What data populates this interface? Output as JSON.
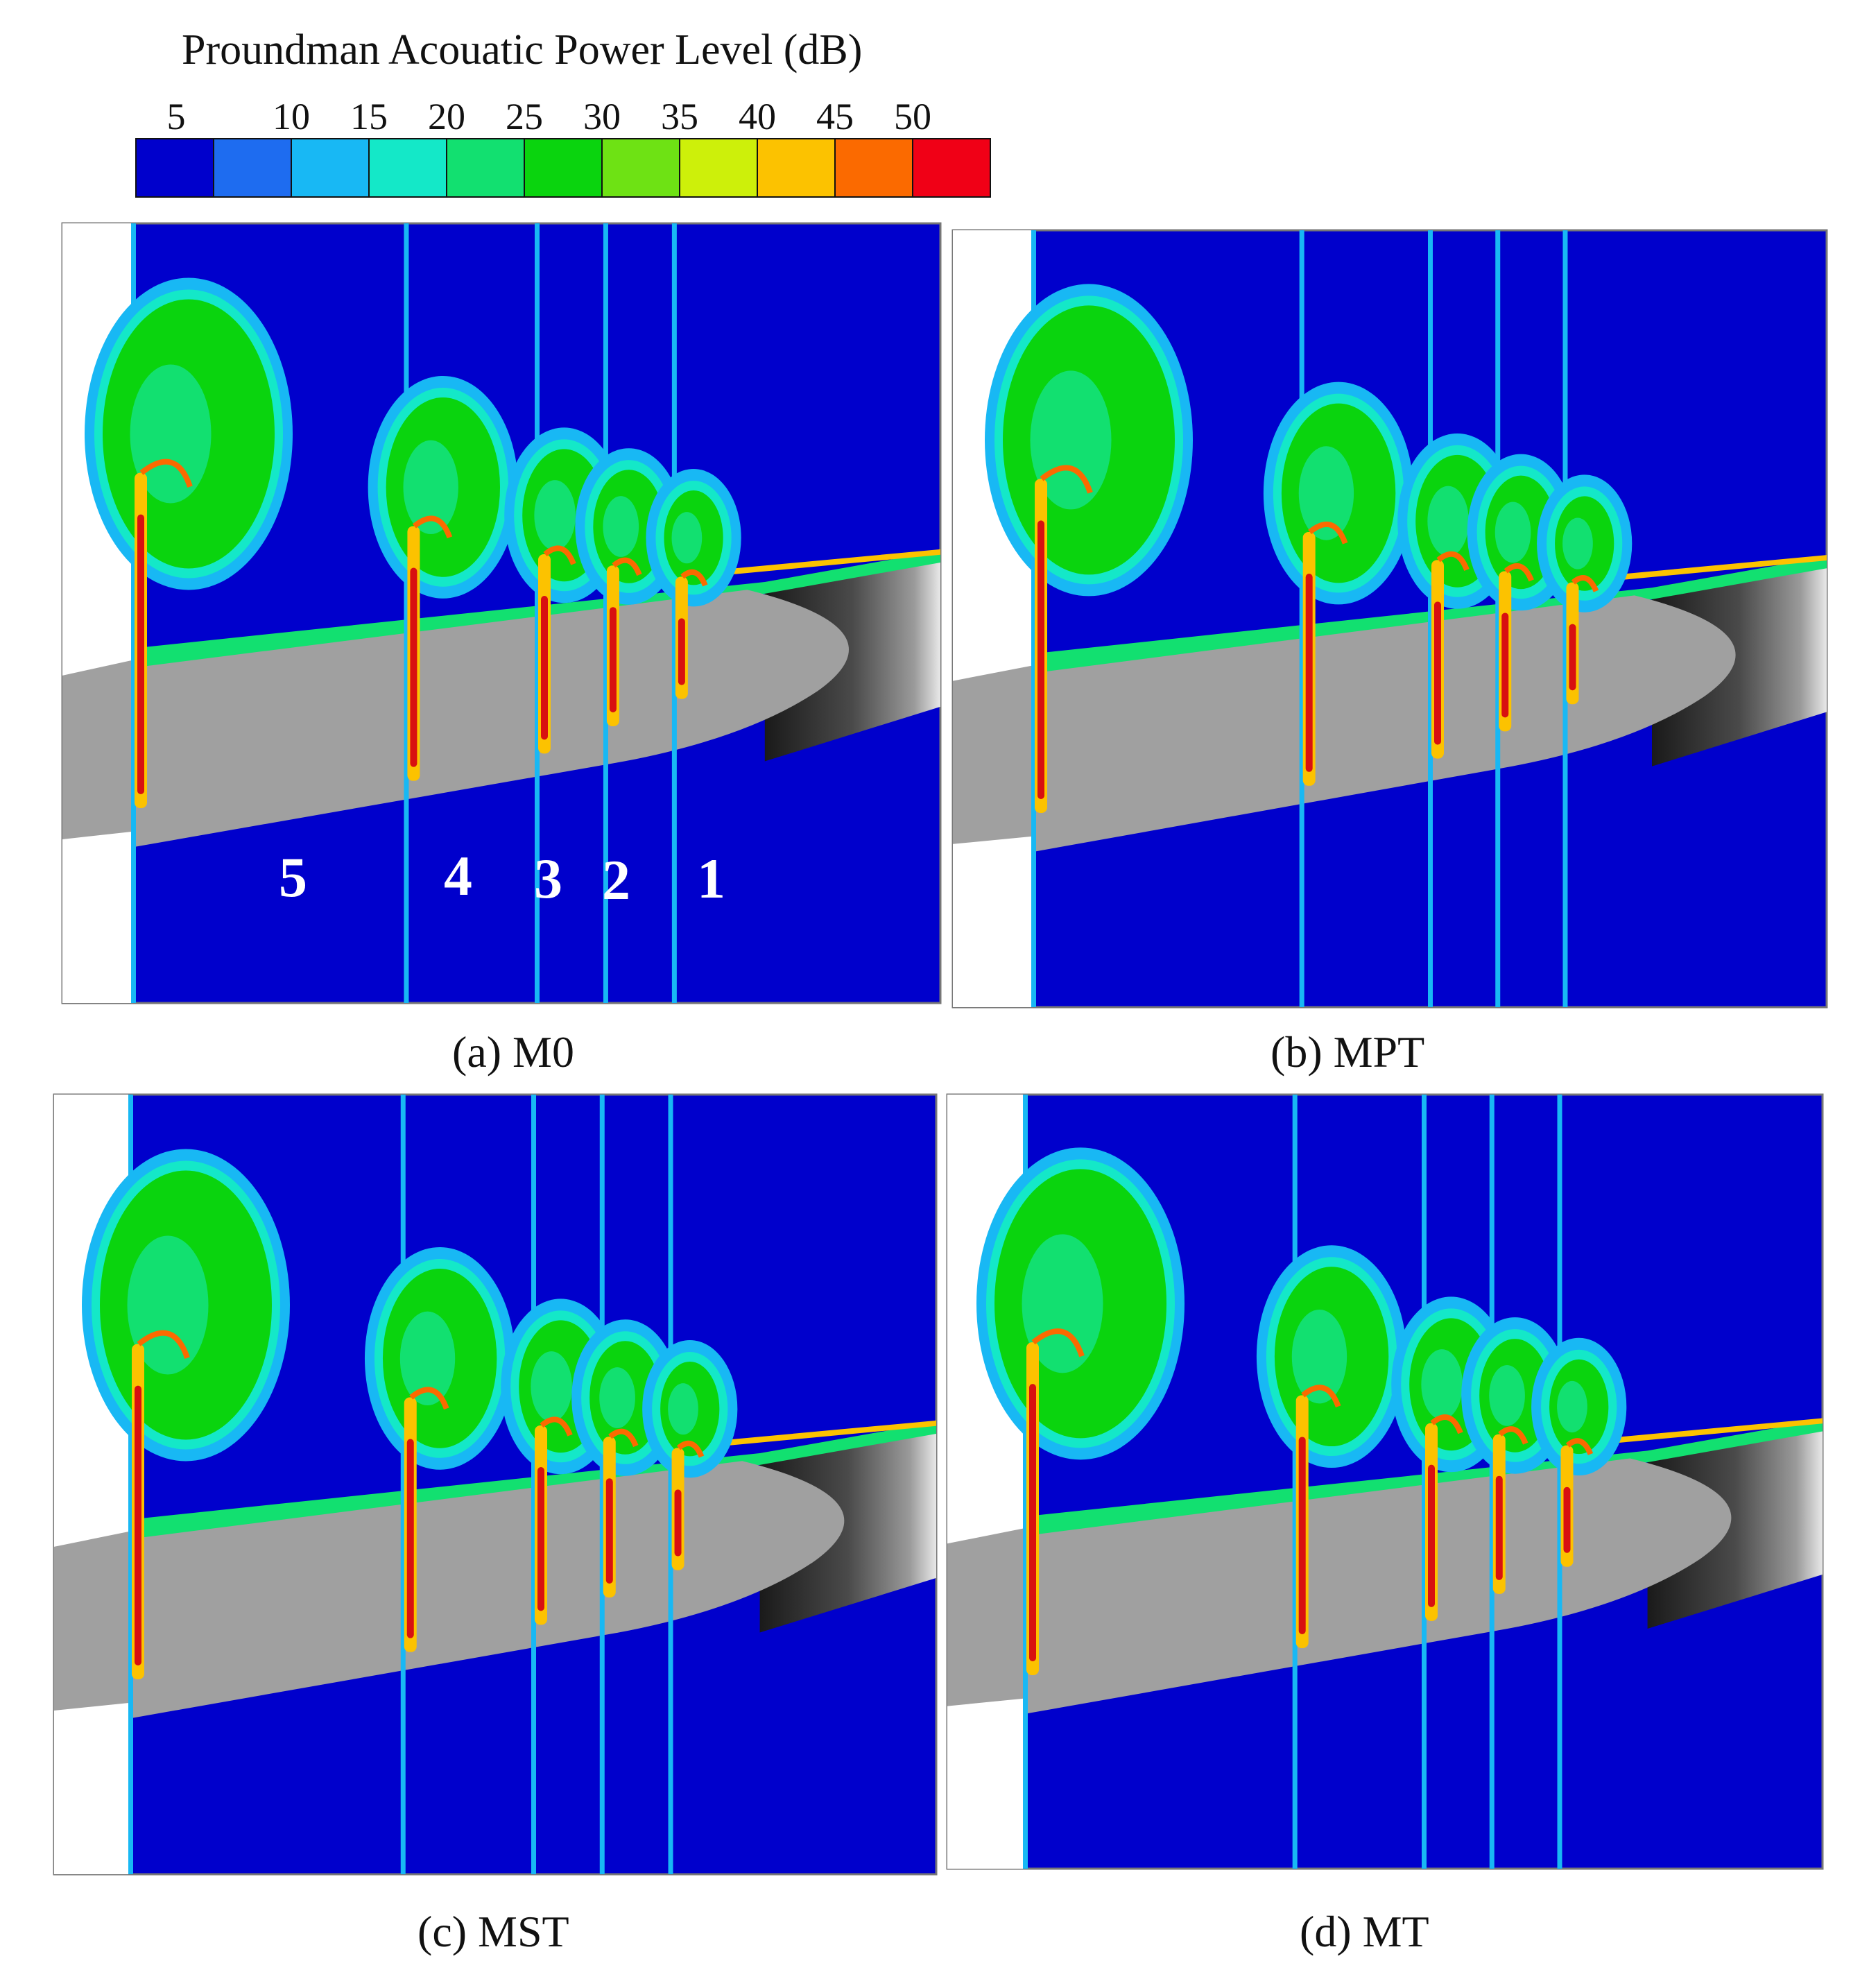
{
  "legend": {
    "title": "Proundman  Acouatic Power Level (dB)",
    "ticks": [
      "5",
      "10",
      "15",
      "20",
      "25",
      "30",
      "35",
      "40",
      "45",
      "50"
    ],
    "colors": [
      "#0000cc",
      "#1e6cf0",
      "#18b8f4",
      "#14e8c8",
      "#12e070",
      "#0ad40e",
      "#6ee214",
      "#cdf00a",
      "#fcc200",
      "#fb6a00",
      "#f00016"
    ]
  },
  "colors": {
    "background": "#0000cc",
    "body": "#a0a0a0",
    "body_dark": "#2c2c2c",
    "high": "#d81010",
    "white_strip": "#ffffff"
  },
  "panels": [
    {
      "id": "a",
      "caption": "(a) M0",
      "slice_numbers": [
        "5",
        "4",
        "3",
        "2",
        "1"
      ]
    },
    {
      "id": "b",
      "caption": "(b) MPT"
    },
    {
      "id": "c",
      "caption": "(c) MST"
    },
    {
      "id": "d",
      "caption": "(d) MT"
    }
  ]
}
